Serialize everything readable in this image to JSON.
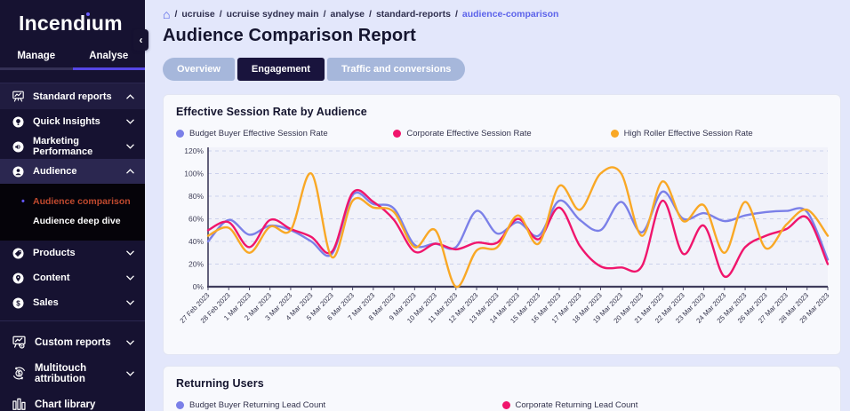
{
  "sidebar": {
    "logo": "Incendium",
    "collapse_icon": "‹",
    "tabs": [
      {
        "label": "Manage",
        "active": false
      },
      {
        "label": "Analyse",
        "active": true
      }
    ],
    "items": [
      {
        "type": "item",
        "label": "Standard reports",
        "icon": "reports-board-icon",
        "chevron": "up",
        "variant": "hl"
      },
      {
        "type": "item",
        "label": "Quick Insights",
        "icon": "bulb-circle-icon",
        "chevron": "down"
      },
      {
        "type": "item",
        "label": "Marketing Performance",
        "icon": "megaphone-circle-icon",
        "chevron": "down"
      },
      {
        "type": "item",
        "label": "Audience",
        "icon": "person-circle-icon",
        "chevron": "up",
        "variant": "parent-active"
      },
      {
        "type": "submenu",
        "items": [
          {
            "label": "Audience comparison",
            "active": true
          },
          {
            "label": "Audience deep dive",
            "active": false
          }
        ]
      },
      {
        "type": "item",
        "label": "Products",
        "icon": "tag-circle-icon",
        "chevron": "down"
      },
      {
        "type": "item",
        "label": "Content",
        "icon": "pin-circle-icon",
        "chevron": "down"
      },
      {
        "type": "item",
        "label": "Sales",
        "icon": "dollar-circle-icon",
        "chevron": "down"
      },
      {
        "type": "divider"
      },
      {
        "type": "item",
        "label": "Custom reports",
        "icon": "board-gear-icon",
        "chevron": "down",
        "size": "large"
      },
      {
        "type": "item",
        "label": "Multitouch attribution",
        "icon": "attribution-dollar-icon",
        "chevron": "down",
        "size": "large"
      },
      {
        "type": "item",
        "label": "Chart library",
        "icon": "bar-chart-icon",
        "size": "large"
      }
    ]
  },
  "breadcrumb": {
    "home_icon": "⌂",
    "items": [
      "ucruise",
      "ucruise sydney main",
      "analyse",
      "standard-reports",
      "audience-comparison"
    ]
  },
  "page_title": "Audience Comparison Report",
  "view_tabs": [
    {
      "label": "Overview",
      "active": false
    },
    {
      "label": "Engagement",
      "active": true
    },
    {
      "label": "Traffic and conversions",
      "active": false
    }
  ],
  "chart_data": {
    "type": "line",
    "title": "Effective Session Rate by Audience",
    "xlabel": "",
    "ylabel": "",
    "ylim": [
      0,
      120
    ],
    "ytick_suffix": "%",
    "yticks": [
      0,
      20,
      40,
      60,
      80,
      100,
      120
    ],
    "grid": "horizontal-dashed",
    "legend_position": "top",
    "x": [
      "27 Feb 2023",
      "28 Feb 2023",
      "1 Mar 2023",
      "2 Mar 2023",
      "3 Mar 2023",
      "4 Mar 2023",
      "5 Mar 2023",
      "6 Mar 2023",
      "7 Mar 2023",
      "8 Mar 2023",
      "9 Mar 2023",
      "10 Mar 2023",
      "11 Mar 2023",
      "12 Mar 2023",
      "13 Mar 2023",
      "14 Mar 2023",
      "15 Mar 2023",
      "16 Mar 2023",
      "17 Mar 2023",
      "18 Mar 2023",
      "19 Mar 2023",
      "20 Mar 2023",
      "21 Mar 2023",
      "22 Mar 2023",
      "23 Mar 2023",
      "24 Mar 2023",
      "25 Mar 2023",
      "26 Mar 2023",
      "27 Mar 2023",
      "28 Mar 2023",
      "29 Mar 2023"
    ],
    "series": [
      {
        "name": "Budget Buyer Effective Session Rate",
        "color": "#7b80e8",
        "values": [
          40,
          59,
          46,
          54,
          50,
          40,
          29,
          81,
          73,
          69,
          37,
          38,
          35,
          67,
          47,
          57,
          45,
          76,
          59,
          50,
          75,
          48,
          84,
          60,
          65,
          58,
          63,
          66,
          67,
          66,
          24
        ]
      },
      {
        "name": "Corporate Effective Session Rate",
        "color": "#f0156c",
        "values": [
          50,
          57,
          35,
          59,
          51,
          44,
          31,
          83,
          75,
          59,
          31,
          38,
          33,
          39,
          39,
          60,
          42,
          70,
          36,
          18,
          17,
          18,
          76,
          29,
          54,
          9,
          35,
          45,
          51,
          61,
          20
        ]
      },
      {
        "name": "High Roller Effective Session Rate",
        "color": "#f9a825",
        "values": [
          45,
          52,
          30,
          53,
          50,
          100,
          26,
          76,
          70,
          66,
          35,
          50,
          0,
          32,
          35,
          63,
          38,
          89,
          68,
          100,
          100,
          45,
          93,
          58,
          72,
          30,
          75,
          34,
          55,
          68,
          45
        ]
      }
    ]
  },
  "returning_users": {
    "title": "Returning Users",
    "legend": [
      {
        "label": "Budget Buyer Returning Lead Count",
        "color": "#7b80e8"
      },
      {
        "label": "Corporate Returning Lead Count",
        "color": "#f0156c"
      }
    ]
  }
}
